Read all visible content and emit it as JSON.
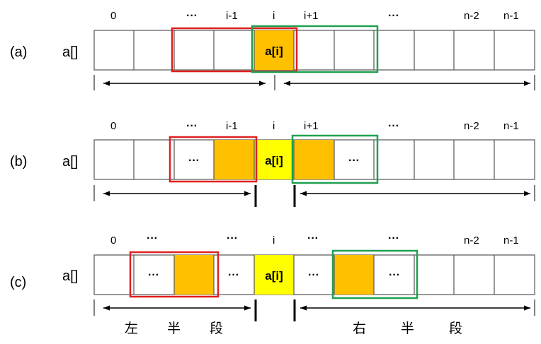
{
  "array_label": "a[]",
  "indices": {
    "i0": "0",
    "ellipsis": "···",
    "im1": "i-1",
    "i": "i",
    "ip1": "i+1",
    "nm2": "n-2",
    "nm1": "n-1"
  },
  "cell": {
    "ai": "a[i]",
    "dots": "···"
  },
  "rows": [
    {
      "label": "(a)"
    },
    {
      "label": "(b)"
    },
    {
      "label": "(c)"
    }
  ],
  "halves": {
    "left": [
      "左",
      "半",
      "段"
    ],
    "right": [
      "右",
      "半",
      "段"
    ]
  },
  "colors": {
    "orange": "#FFC000",
    "yellow": "#FFFF00",
    "red": "#E02020",
    "green": "#1FA050",
    "border": "#555555"
  }
}
